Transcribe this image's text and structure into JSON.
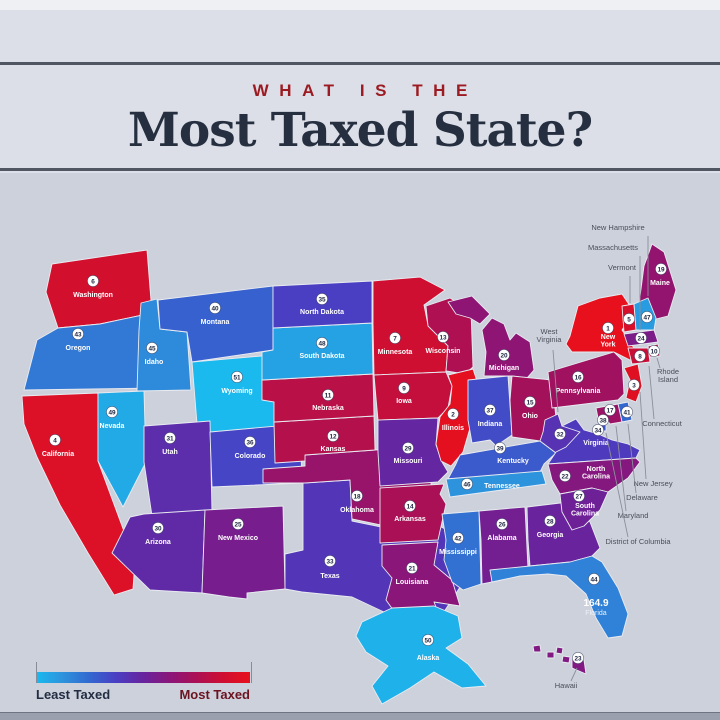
{
  "header": {
    "kicker": "WHAT IS THE",
    "title": "Most Taxed State?"
  },
  "legend": {
    "left_label": "Least Taxed",
    "right_label": "Most Taxed"
  },
  "colors": {
    "most_taxed": "#e8101c",
    "least_taxed": "#1ab9ee",
    "scale": [
      "#e8101c",
      "#cf0f31",
      "#ab1054",
      "#8a1679",
      "#67249e",
      "#4a3ec3",
      "#3368d0",
      "#2d93dc",
      "#1ab9ee"
    ],
    "scale_pos": [
      0,
      0.12,
      0.25,
      0.4,
      0.55,
      0.68,
      0.8,
      0.9,
      1
    ],
    "badge_fill": "#ffffff",
    "badge_text": "#1d2540",
    "state_border": "#e9ebf1",
    "callout_text": "#4a4e59",
    "callout_line": "#8b8f99"
  },
  "chart_data": {
    "type": "heatmap",
    "title": "Most Taxed State?",
    "subtitle": "WHAT IS THE",
    "legend": {
      "min": "Least Taxed",
      "max": "Most Taxed",
      "position": "bottom-left"
    },
    "unit": "rank (1 = most taxed, 51 = least taxed)",
    "states": [
      {
        "abbr": "WA",
        "name": "Washington",
        "rank": 6
      },
      {
        "abbr": "OR",
        "name": "Oregon",
        "rank": 43
      },
      {
        "abbr": "CA",
        "name": "California",
        "rank": 4
      },
      {
        "abbr": "NV",
        "name": "Nevada",
        "rank": 49
      },
      {
        "abbr": "ID",
        "name": "Idaho",
        "rank": 45
      },
      {
        "abbr": "MT",
        "name": "Montana",
        "rank": 40
      },
      {
        "abbr": "WY",
        "name": "Wyoming",
        "rank": 51
      },
      {
        "abbr": "UT",
        "name": "Utah",
        "rank": 31
      },
      {
        "abbr": "CO",
        "name": "Colorado",
        "rank": 36
      },
      {
        "abbr": "AZ",
        "name": "Arizona",
        "rank": 30
      },
      {
        "abbr": "NM",
        "name": "New Mexico",
        "rank": 25
      },
      {
        "abbr": "TX",
        "name": "Texas",
        "rank": 33
      },
      {
        "abbr": "OK",
        "name": "Oklahoma",
        "rank": 18
      },
      {
        "abbr": "KS",
        "name": "Kansas",
        "rank": 12
      },
      {
        "abbr": "NE",
        "name": "Nebraska",
        "rank": 11
      },
      {
        "abbr": "SD",
        "name": "South Dakota",
        "rank": 48
      },
      {
        "abbr": "ND",
        "name": "North Dakota",
        "rank": 35
      },
      {
        "abbr": "MN",
        "name": "Minnesota",
        "rank": 7
      },
      {
        "abbr": "IA",
        "name": "Iowa",
        "rank": 9
      },
      {
        "abbr": "MO",
        "name": "Missouri",
        "rank": 29
      },
      {
        "abbr": "AR",
        "name": "Arkansas",
        "rank": 14
      },
      {
        "abbr": "LA",
        "name": "Louisiana",
        "rank": 21
      },
      {
        "abbr": "MS",
        "name": "Mississippi",
        "rank": 42
      },
      {
        "abbr": "AL",
        "name": "Alabama",
        "rank": 26
      },
      {
        "abbr": "GA",
        "name": "Georgia",
        "rank": 28
      },
      {
        "abbr": "FL",
        "name": "Florida",
        "rank": 44
      },
      {
        "abbr": "WI",
        "name": "Wisconsin",
        "rank": 13
      },
      {
        "abbr": "IL",
        "name": "Illinois",
        "rank": 2
      },
      {
        "abbr": "MI",
        "name": "Michigan",
        "rank": 20
      },
      {
        "abbr": "IN",
        "name": "Indiana",
        "rank": 37
      },
      {
        "abbr": "OH",
        "name": "Ohio",
        "rank": 15
      },
      {
        "abbr": "KY",
        "name": "Kentucky",
        "rank": 39
      },
      {
        "abbr": "TN",
        "name": "Tennessee",
        "rank": 46
      },
      {
        "abbr": "WV",
        "name": "West Virginia",
        "rank": 32
      },
      {
        "abbr": "VA",
        "name": "Virginia",
        "rank": 34
      },
      {
        "abbr": "NC",
        "name": "North Carolina",
        "rank": 22
      },
      {
        "abbr": "SC",
        "name": "South Carolina",
        "rank": 27
      },
      {
        "abbr": "PA",
        "name": "Pennsylvania",
        "rank": 16
      },
      {
        "abbr": "NY",
        "name": "New York",
        "rank": 1
      },
      {
        "abbr": "ME",
        "name": "Maine",
        "rank": 19
      },
      {
        "abbr": "VT",
        "name": "Vermont",
        "rank": 5
      },
      {
        "abbr": "NH",
        "name": "New Hampshire",
        "rank": 47
      },
      {
        "abbr": "MA",
        "name": "Massachusetts",
        "rank": 24
      },
      {
        "abbr": "RI",
        "name": "Rhode Island",
        "rank": 10
      },
      {
        "abbr": "CT",
        "name": "Connecticut",
        "rank": 8
      },
      {
        "abbr": "NJ",
        "name": "New Jersey",
        "rank": 3
      },
      {
        "abbr": "DE",
        "name": "Delaware",
        "rank": 41
      },
      {
        "abbr": "MD",
        "name": "Maryland",
        "rank": 17
      },
      {
        "abbr": "DC",
        "name": "District of Columbia",
        "rank": 38
      },
      {
        "abbr": "AK",
        "name": "Alaska",
        "rank": 50
      },
      {
        "abbr": "HI",
        "name": "Hawaii",
        "rank": 23
      }
    ],
    "annotations": [
      {
        "state": "FL",
        "value": "164.9"
      }
    ]
  },
  "florida_value": "164.9"
}
